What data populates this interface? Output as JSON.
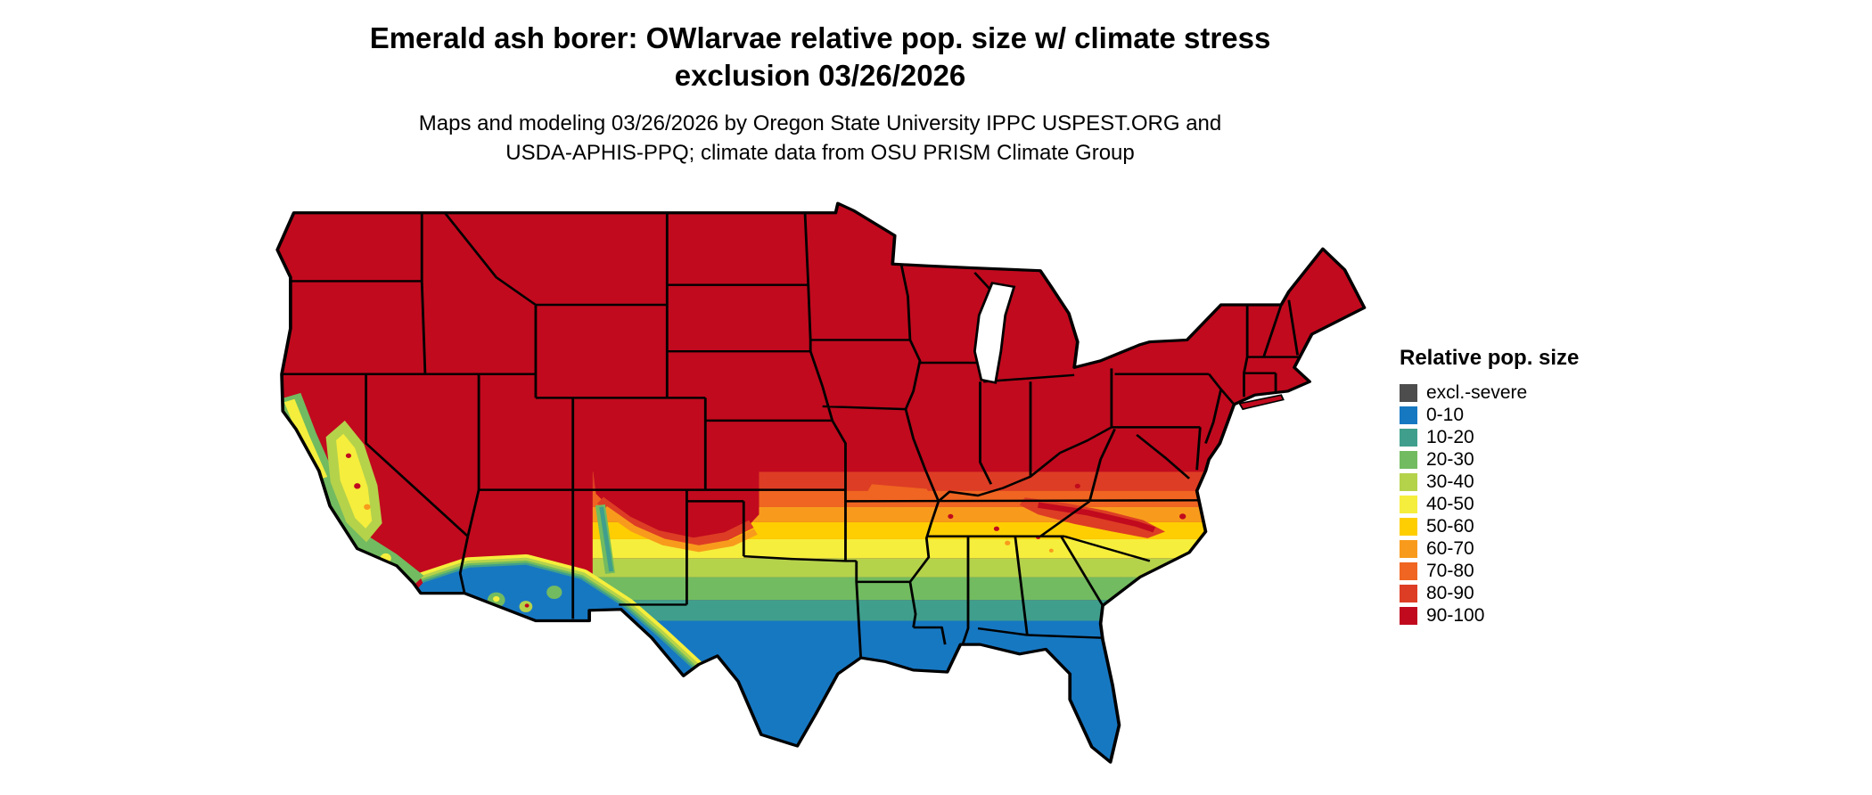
{
  "title": {
    "line1": "Emerald ash borer: OWlarvae relative pop. size w/ climate stress",
    "line2": "exclusion 03/26/2026"
  },
  "subtitle": {
    "line1": "Maps and modeling 03/26/2026 by Oregon State University IPPC USPEST.ORG and",
    "line2": "USDA-APHIS-PPQ; climate data from OSU PRISM Climate Group"
  },
  "legend": {
    "title": "Relative pop. size",
    "items": [
      {
        "label": "excl.-severe",
        "color": "#4d4d4d"
      },
      {
        "label": "0-10",
        "color": "#1778c2"
      },
      {
        "label": "10-20",
        "color": "#409f8c"
      },
      {
        "label": "20-30",
        "color": "#72bb60"
      },
      {
        "label": "30-40",
        "color": "#b5d24b"
      },
      {
        "label": "40-50",
        "color": "#f5ee3c"
      },
      {
        "label": "50-60",
        "color": "#fece02"
      },
      {
        "label": "60-70",
        "color": "#f89b1c"
      },
      {
        "label": "70-80",
        "color": "#ef6521"
      },
      {
        "label": "80-90",
        "color": "#dd3d24"
      },
      {
        "label": "90-100",
        "color": "#c10a1e"
      }
    ]
  },
  "map": {
    "description": "Contiguous United States choropleth: red (90-100) across the north, grading through orange, yellow, green and teal to blue (0-10) across the southern tier, Gulf coast, Florida, south Texas and the desert Southwest, with green/yellow zones along coastal California."
  }
}
